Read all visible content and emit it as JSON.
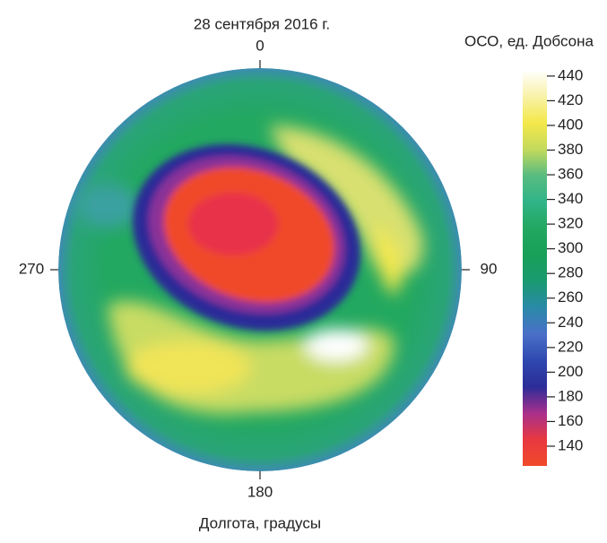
{
  "chart_data": {
    "type": "polar-map",
    "title": "28 сентября 2016 г.",
    "xlabel": "Долгота, градусы",
    "colorbar_label": "ОСО, ед. Добсона",
    "xticks": [
      0,
      90,
      180,
      270
    ],
    "clim": [
      124,
      445
    ],
    "cticks": [
      140,
      160,
      180,
      200,
      220,
      240,
      260,
      280,
      300,
      320,
      340,
      360,
      380,
      400,
      420,
      440
    ],
    "colormap": [
      "#f04a2a",
      "#e83840",
      "#a8308c",
      "#2c2c98",
      "#2f48b0",
      "#4a70c8",
      "#2a8aa8",
      "#1a9a70",
      "#18a058",
      "#22a860",
      "#30b488",
      "#58bc80",
      "#c4da5c",
      "#f4e84a",
      "#f8f2a8",
      "#ffffff"
    ]
  }
}
